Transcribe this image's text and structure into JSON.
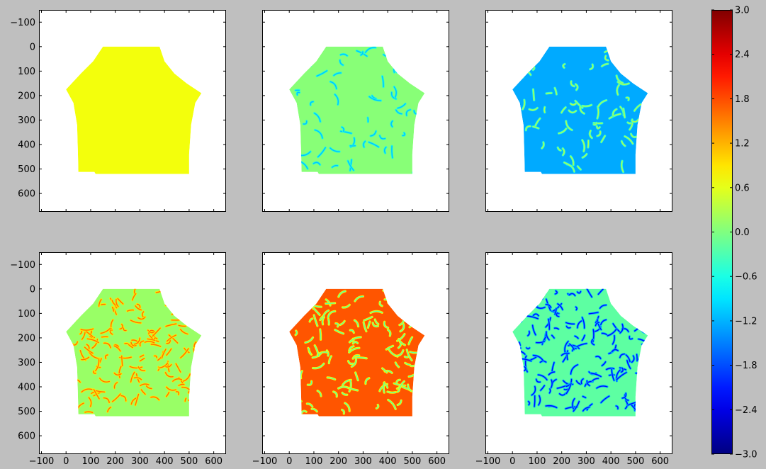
{
  "figure": {
    "background": "#bfbfbf",
    "axes_background": "#ffffff",
    "colormap": "jet"
  },
  "chart_data": {
    "type": "heatmap",
    "layout": "2x3 grid of image panels sharing x and y axes, single vertical colorbar on the right",
    "xlim": [
      -110,
      650
    ],
    "ylim": [
      675,
      -150
    ],
    "x_ticks": [
      -100,
      0,
      100,
      200,
      300,
      400,
      500,
      600
    ],
    "x_tick_labels": [
      "−100",
      "0",
      "100",
      "200",
      "300",
      "400",
      "500",
      "600"
    ],
    "y_ticks": [
      -100,
      0,
      100,
      200,
      300,
      400,
      500,
      600
    ],
    "y_tick_labels": [
      "−100",
      "0",
      "100",
      "200",
      "300",
      "400",
      "500",
      "600"
    ],
    "x_ticklabels_on_bottom_row_only": true,
    "y_ticklabels_on_left_column_only": true,
    "region_outline_data_coords": [
      [
        150,
        0
      ],
      [
        380,
        0
      ],
      [
        400,
        60
      ],
      [
        440,
        110
      ],
      [
        490,
        150
      ],
      [
        550,
        190
      ],
      [
        525,
        230
      ],
      [
        508,
        320
      ],
      [
        500,
        440
      ],
      [
        500,
        520
      ],
      [
        120,
        520
      ],
      [
        115,
        512
      ],
      [
        50,
        512
      ],
      [
        48,
        430
      ],
      [
        45,
        320
      ],
      [
        30,
        230
      ],
      [
        0,
        175
      ],
      [
        60,
        110
      ],
      [
        110,
        60
      ]
    ],
    "panels": [
      {
        "row": 0,
        "col": 0,
        "base_value": 0.68,
        "feature_value": 0.68,
        "feature_density": 0
      },
      {
        "row": 0,
        "col": 1,
        "base_value": 0.05,
        "feature_value": -1.1,
        "feature_density": 0.35
      },
      {
        "row": 0,
        "col": 2,
        "base_value": -1.25,
        "feature_value": 0.3,
        "feature_density": 0.45
      },
      {
        "row": 1,
        "col": 0,
        "base_value": 0.15,
        "feature_value": 1.6,
        "feature_density": 0.9
      },
      {
        "row": 1,
        "col": 1,
        "base_value": 1.75,
        "feature_value": -0.2,
        "feature_density": 0.7
      },
      {
        "row": 1,
        "col": 2,
        "base_value": -0.2,
        "feature_value": -2.2,
        "feature_density": 1.0
      }
    ],
    "colorbar": {
      "vmin": -3.0,
      "vmax": 3.0,
      "ticks": [
        -3.0,
        -2.4,
        -1.8,
        -1.2,
        -0.6,
        0.0,
        0.6,
        1.2,
        1.8,
        2.4,
        3.0
      ],
      "tick_labels": [
        "−3.0",
        "−2.4",
        "−1.8",
        "−1.2",
        "−0.6",
        "0.0",
        "0.6",
        "1.2",
        "1.8",
        "2.4",
        "3.0"
      ]
    }
  }
}
